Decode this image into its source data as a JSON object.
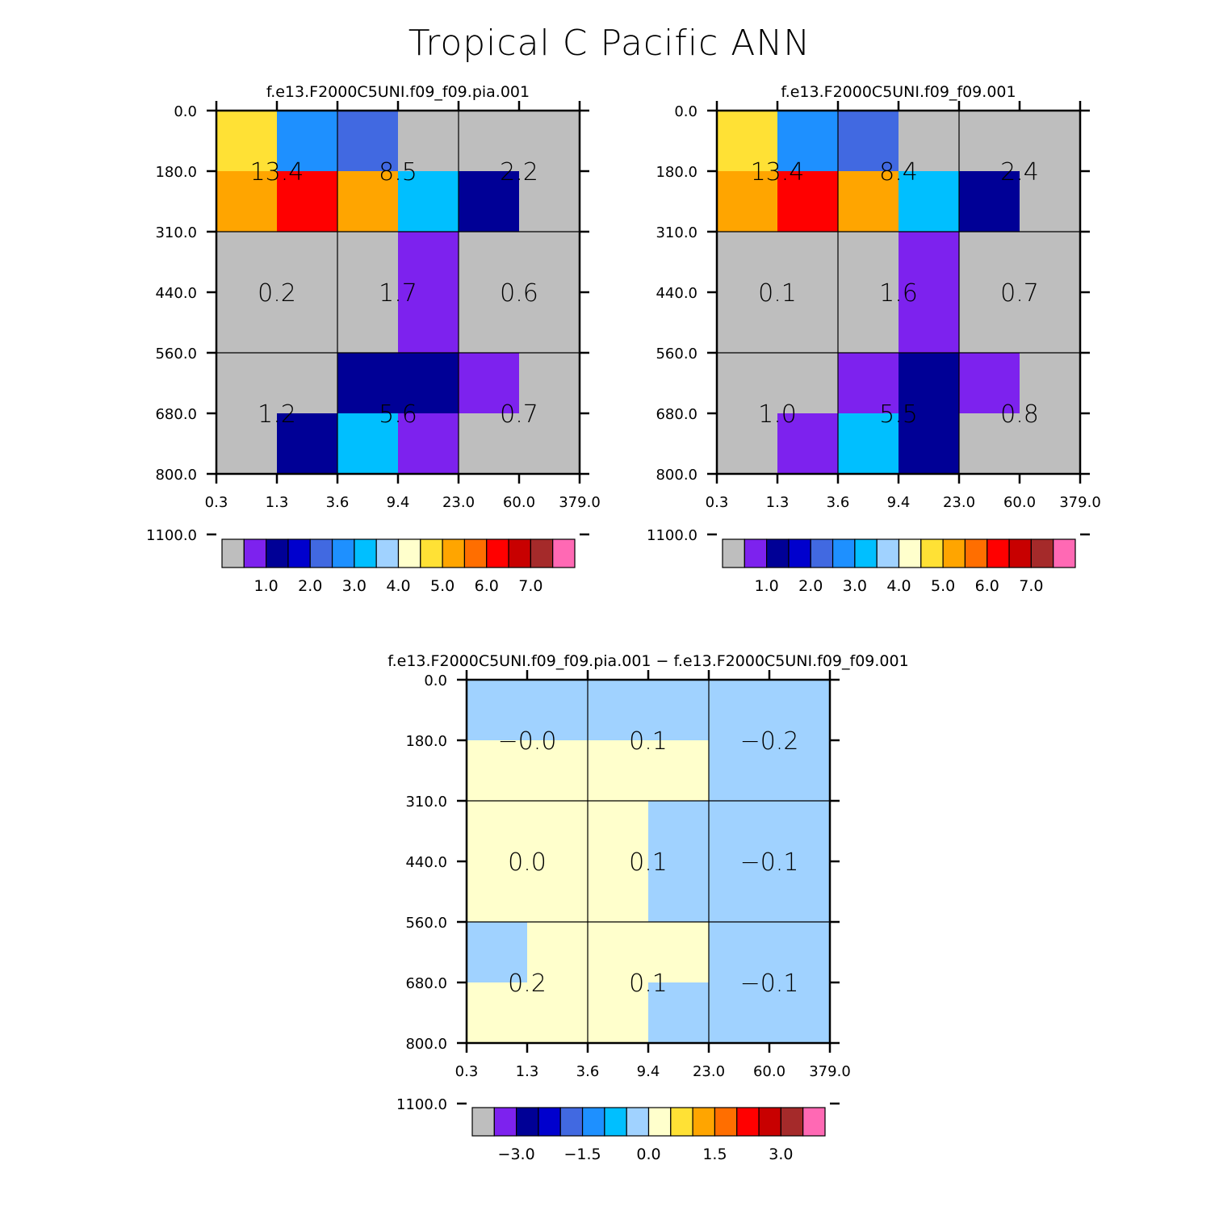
{
  "title": "Tropical C Pacific ANN",
  "palette_colors": [
    "#bebebe",
    "#7d22ee",
    "#000096",
    "#0000cd",
    "#4169e1",
    "#1e90ff",
    "#00bfff",
    "#a0d2ff",
    "#ffffcc",
    "#ffe135",
    "#ffa500",
    "#ff6e00",
    "#ff0000",
    "#c80000",
    "#a52a2a",
    "#ff69b4"
  ],
  "chart_data": [
    {
      "type": "heatmap",
      "title": "f.e13.F2000C5UNI.f09_f09.pia.001",
      "xlabel": "",
      "ylabel": "",
      "x_tick_labels": [
        "0.3",
        "1.3",
        "3.6",
        "9.4",
        "23.0",
        "60.0",
        "379.0"
      ],
      "y_tick_labels": [
        "0.0",
        "180.0",
        "310.0",
        "440.0",
        "560.0",
        "680.0",
        "800.0",
        "1100.0"
      ],
      "colorbar_levels": [
        0.5,
        1.0,
        1.5,
        2.0,
        2.5,
        3.0,
        3.5,
        4.0,
        4.5,
        5.0,
        5.5,
        6.0,
        6.5,
        7.0
      ],
      "colorbar_tick_labels": [
        "1.0",
        "2.0",
        "3.0",
        "4.0",
        "5.0",
        "6.0",
        "7.0"
      ],
      "cells": [
        [
          4.8,
          2.8,
          2.3,
          0.2,
          0.2,
          0.2
        ],
        [
          5.1,
          6.2,
          5.1,
          3.0,
          1.2,
          0.2
        ],
        [
          0.2,
          0.2,
          0.2,
          0.8,
          0.2,
          0.2
        ],
        [
          0.2,
          0.2,
          0.2,
          0.8,
          0.2,
          0.2
        ],
        [
          0.2,
          0.2,
          1.2,
          1.2,
          0.8,
          0.2
        ],
        [
          0.2,
          1.2,
          3.0,
          0.8,
          0.2,
          0.2
        ]
      ],
      "block_labels": [
        [
          "13.4",
          "8.5",
          "2.2"
        ],
        [
          "0.2",
          "1.7",
          "0.6"
        ],
        [
          "1.2",
          "5.6",
          "0.7"
        ]
      ]
    },
    {
      "type": "heatmap",
      "title": "f.e13.F2000C5UNI.f09_f09.001",
      "xlabel": "",
      "ylabel": "",
      "x_tick_labels": [
        "0.3",
        "1.3",
        "3.6",
        "9.4",
        "23.0",
        "60.0",
        "379.0"
      ],
      "y_tick_labels": [
        "0.0",
        "180.0",
        "310.0",
        "440.0",
        "560.0",
        "680.0",
        "800.0",
        "1100.0"
      ],
      "colorbar_levels": [
        0.5,
        1.0,
        1.5,
        2.0,
        2.5,
        3.0,
        3.5,
        4.0,
        4.5,
        5.0,
        5.5,
        6.0,
        6.5,
        7.0
      ],
      "colorbar_tick_labels": [
        "1.0",
        "2.0",
        "3.0",
        "4.0",
        "5.0",
        "6.0",
        "7.0"
      ],
      "cells": [
        [
          4.8,
          2.8,
          2.3,
          0.2,
          0.2,
          0.2
        ],
        [
          5.1,
          6.2,
          5.1,
          3.0,
          1.2,
          0.2
        ],
        [
          0.2,
          0.2,
          0.2,
          0.8,
          0.2,
          0.2
        ],
        [
          0.2,
          0.2,
          0.2,
          0.8,
          0.2,
          0.2
        ],
        [
          0.2,
          0.2,
          0.8,
          1.2,
          0.8,
          0.2
        ],
        [
          0.2,
          0.8,
          3.0,
          1.2,
          0.2,
          0.2
        ]
      ],
      "block_labels": [
        [
          "13.4",
          "8.4",
          "2.4"
        ],
        [
          "0.1",
          "1.6",
          "0.7"
        ],
        [
          "1.0",
          "5.5",
          "0.8"
        ]
      ]
    },
    {
      "type": "heatmap",
      "title": "f.e13.F2000C5UNI.f09_f09.pia.001 − f.e13.F2000C5UNI.f09_f09.001",
      "xlabel": "",
      "ylabel": "",
      "x_tick_labels": [
        "0.3",
        "1.3",
        "3.6",
        "9.4",
        "23.0",
        "60.0",
        "379.0"
      ],
      "y_tick_labels": [
        "0.0",
        "180.0",
        "310.0",
        "440.0",
        "560.0",
        "680.0",
        "800.0",
        "1100.0"
      ],
      "colorbar_levels": [
        -3.5,
        -3.0,
        -2.5,
        -2.0,
        -1.5,
        -1.0,
        -0.5,
        0.0,
        0.5,
        1.0,
        1.5,
        2.0,
        2.5,
        3.0
      ],
      "colorbar_tick_labels": [
        "−3.0",
        "−1.5",
        "0.0",
        "1.5",
        "3.0"
      ],
      "cells": [
        [
          -0.1,
          -0.1,
          -0.1,
          -0.1,
          -0.1,
          -0.1
        ],
        [
          0.1,
          0.1,
          0.1,
          0.1,
          -0.1,
          -0.1
        ],
        [
          0.1,
          0.1,
          0.1,
          -0.1,
          -0.1,
          -0.1
        ],
        [
          0.1,
          0.1,
          0.1,
          -0.1,
          -0.1,
          -0.1
        ],
        [
          -0.1,
          0.1,
          0.1,
          0.1,
          -0.1,
          -0.1
        ],
        [
          0.1,
          0.1,
          0.1,
          -0.1,
          -0.1,
          -0.1
        ]
      ],
      "block_labels": [
        [
          "−0.0",
          "0.1",
          "−0.2"
        ],
        [
          "0.0",
          "0.1",
          "−0.1"
        ],
        [
          "0.2",
          "0.1",
          "−0.1"
        ]
      ]
    }
  ]
}
